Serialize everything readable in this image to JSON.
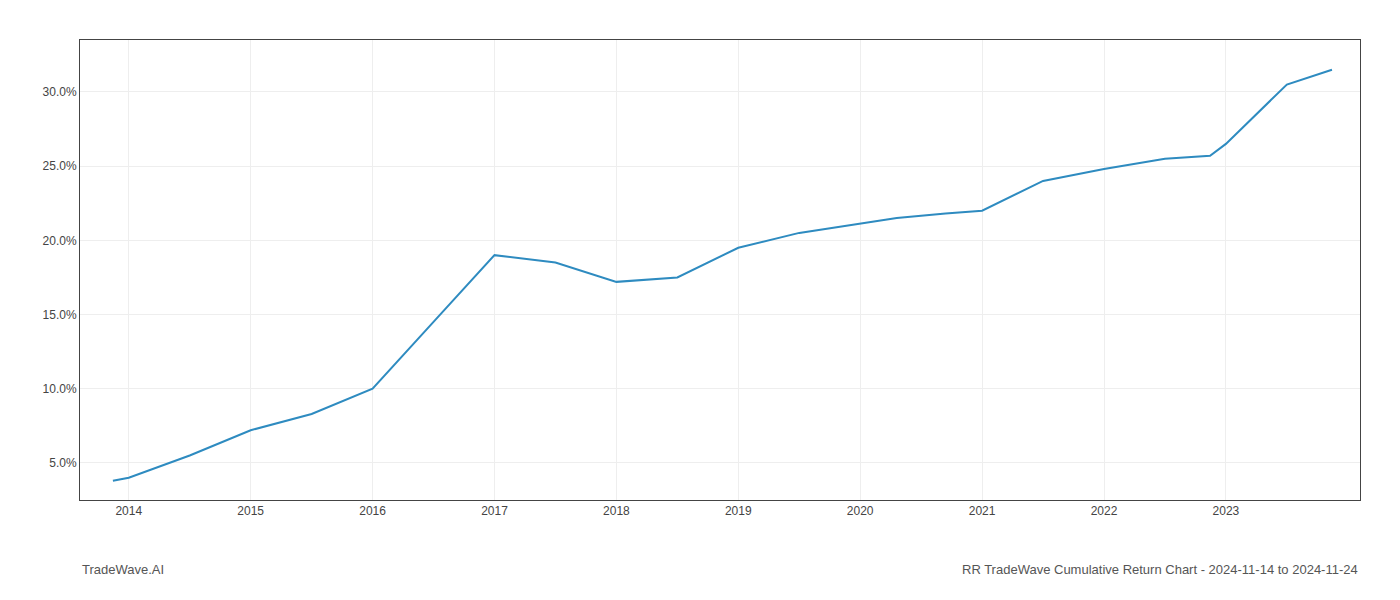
{
  "chart_data": {
    "type": "line",
    "x": [
      2013.87,
      2014.0,
      2014.5,
      2015.0,
      2015.5,
      2016.0,
      2016.5,
      2017.0,
      2017.5,
      2018.0,
      2018.5,
      2019.0,
      2019.5,
      2020.0,
      2020.3,
      2020.7,
      2021.0,
      2021.5,
      2022.0,
      2022.5,
      2022.87,
      2023.0,
      2023.5,
      2023.87
    ],
    "values": [
      3.8,
      4.0,
      5.5,
      7.2,
      8.3,
      10.0,
      14.5,
      19.0,
      18.5,
      17.2,
      17.5,
      19.5,
      20.5,
      21.1,
      21.5,
      21.8,
      22.0,
      24.0,
      24.8,
      25.5,
      25.7,
      26.5,
      30.5,
      31.5
    ],
    "color": "#2e8bc0",
    "xlim": [
      2013.6,
      2024.1
    ],
    "xticks": [
      2014,
      2015,
      2016,
      2017,
      2018,
      2019,
      2020,
      2021,
      2022,
      2023
    ],
    "ylim": [
      2.5,
      33.5
    ],
    "yticks": [
      {
        "value": 5.0,
        "label": "5.0%"
      },
      {
        "value": 10.0,
        "label": "10.0%"
      },
      {
        "value": 15.0,
        "label": "15.0%"
      },
      {
        "value": 20.0,
        "label": "20.0%"
      },
      {
        "value": 25.0,
        "label": "25.0%"
      },
      {
        "value": 30.0,
        "label": "30.0%"
      }
    ],
    "grid": true,
    "annotations": [
      {
        "text": "TradeWave.AI"
      },
      {
        "text": "RR TradeWave Cumulative Return Chart - 2024-11-14 to 2024-11-24"
      }
    ]
  }
}
